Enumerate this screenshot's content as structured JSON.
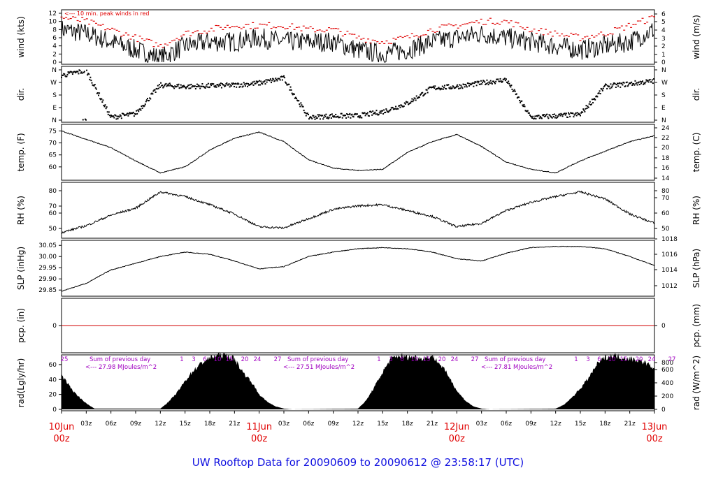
{
  "footer": "UW Rooftop Data for 20090609  to  20090612 @ 23:58:17  (UTC)",
  "colors": {
    "frame": "#000000",
    "peak": "#e00000",
    "day_label": "#e00000",
    "rad_note": "#a000c0",
    "footer": "#1010e0",
    "pcp_line": "#d00000"
  },
  "x_axis": {
    "hour_labels": [
      "03z",
      "06z",
      "09z",
      "12z",
      "15z",
      "18z",
      "21z"
    ],
    "day_labels": [
      {
        "date": "10Jun",
        "time": "00z"
      },
      {
        "date": "11Jun",
        "time": "00z"
      },
      {
        "date": "12Jun",
        "time": "00z"
      },
      {
        "date": "13Jun",
        "time": "00z"
      }
    ]
  },
  "chart_data": [
    {
      "type": "line",
      "key": "wind",
      "ylabel_left": "wind (kts)",
      "ylabel_right": "wind (m/s)",
      "left_ticks": [
        "0",
        "2",
        "4",
        "6",
        "8",
        "10",
        "12"
      ],
      "ylim": [
        0,
        12
      ],
      "right_ticks": [
        "0",
        "1",
        "2",
        "3",
        "4",
        "5",
        "6"
      ],
      "annotation": "<--- 10 min. peak winds in red",
      "x_hours": [
        0,
        3,
        6,
        9,
        12,
        15,
        18,
        21,
        24,
        27,
        30,
        33,
        36,
        39,
        42,
        45,
        48,
        51,
        54,
        57,
        60,
        63,
        66,
        69,
        72
      ],
      "series": [
        {
          "role": "speed",
          "values": [
            8,
            7,
            5,
            3,
            1,
            4,
            5,
            5,
            6,
            5,
            5,
            5,
            3,
            2,
            3,
            5,
            6,
            7,
            6,
            5,
            4,
            3,
            4,
            5,
            8
          ]
        },
        {
          "role": "peak",
          "values": [
            11,
            10,
            8,
            6,
            4,
            7,
            8,
            9,
            9,
            9,
            8,
            8,
            6,
            5,
            6,
            8,
            9,
            10,
            10,
            8,
            7,
            6,
            7,
            9,
            11
          ]
        }
      ]
    },
    {
      "type": "scatter",
      "key": "dir",
      "ylabel_left": "dir.",
      "ylabel_right": "dir.",
      "left_ticks": [
        "N",
        "E",
        "S",
        "W",
        "N"
      ],
      "right_ticks": [
        "N",
        "E",
        "S",
        "W",
        "N"
      ],
      "ylim": [
        0,
        360
      ],
      "x_hours": [
        0,
        3,
        6,
        9,
        12,
        15,
        18,
        21,
        24,
        27,
        30,
        33,
        36,
        39,
        42,
        45,
        48,
        51,
        54,
        57,
        60,
        63,
        66,
        69,
        72
      ],
      "values": [
        320,
        355,
        20,
        45,
        250,
        240,
        245,
        250,
        265,
        300,
        20,
        30,
        30,
        60,
        120,
        230,
        240,
        265,
        290,
        20,
        30,
        40,
        240,
        260,
        280
      ]
    },
    {
      "type": "line",
      "key": "temp",
      "ylabel_left": "temp. (F)",
      "ylabel_right": "temp. (C)",
      "left_ticks": [
        "60",
        "65",
        "70",
        "75"
      ],
      "ylim": [
        55.3,
        76.0
      ],
      "right_ticks": [
        "14",
        "16",
        "18",
        "20",
        "22",
        "24"
      ],
      "x_hours": [
        0,
        3,
        6,
        9,
        12,
        15,
        18,
        21,
        24,
        27,
        30,
        33,
        36,
        39,
        42,
        45,
        48,
        51,
        54,
        57,
        60,
        63,
        66,
        69,
        72
      ],
      "values": [
        75,
        71.5,
        68,
        62.5,
        57.5,
        60,
        67,
        72,
        74.5,
        70.5,
        63,
        59.5,
        58.5,
        59,
        66,
        70.5,
        73.5,
        68.5,
        62,
        59,
        57.5,
        62.5,
        66.5,
        70.5,
        73
      ]
    },
    {
      "type": "line",
      "key": "rh",
      "ylabel_left": "RH (%)",
      "ylabel_right": "RH (%)",
      "left_ticks": [
        "50",
        "60",
        "70",
        "80"
      ],
      "ylim": [
        44,
        86
      ],
      "right_ticks": [
        "50",
        "60",
        "70",
        "80"
      ],
      "x_hours": [
        0,
        3,
        6,
        9,
        12,
        15,
        18,
        21,
        24,
        27,
        30,
        33,
        36,
        39,
        42,
        45,
        48,
        51,
        54,
        57,
        60,
        63,
        66,
        69,
        72
      ],
      "values": [
        47,
        53,
        62,
        68,
        82,
        78,
        71,
        63,
        52,
        51,
        59,
        67,
        70,
        71,
        66,
        61,
        52,
        55,
        66,
        73,
        78,
        82,
        76,
        63,
        55
      ]
    },
    {
      "type": "line",
      "key": "slp",
      "ylabel_left": "SLP (inHg)",
      "ylabel_right": "SLP (hPa)",
      "left_ticks": [
        "29.85",
        "29.90",
        "29.95",
        "30.00",
        "30.05"
      ],
      "ylim": [
        29.835,
        30.057
      ],
      "right_ticks": [
        "1012",
        "1014",
        "1016",
        "1018"
      ],
      "x_hours": [
        0,
        3,
        6,
        9,
        12,
        15,
        18,
        21,
        24,
        27,
        30,
        33,
        36,
        39,
        42,
        45,
        48,
        51,
        54,
        57,
        60,
        63,
        66,
        69,
        72
      ],
      "values": [
        29.845,
        29.88,
        29.94,
        29.97,
        30.0,
        30.02,
        30.01,
        29.98,
        29.945,
        29.955,
        30.0,
        30.02,
        30.035,
        30.04,
        30.035,
        30.02,
        29.99,
        29.98,
        30.015,
        30.04,
        30.045,
        30.045,
        30.035,
        30.0,
        29.96
      ]
    },
    {
      "type": "line",
      "key": "pcp",
      "ylabel_left": "pcp. (in)",
      "ylabel_right": "pcp. (mm)",
      "left_ticks": [
        "0"
      ],
      "right_ticks": [
        "0"
      ],
      "ylim": [
        -1,
        1
      ],
      "x_hours": [
        0,
        72
      ],
      "values": [
        0,
        0
      ]
    },
    {
      "type": "area",
      "key": "rad",
      "ylabel_left": "rad(Lgly/hr)",
      "ylabel_right": "rad (W/m^2)",
      "left_ticks": [
        "0",
        "20",
        "40",
        "60"
      ],
      "ylim": [
        0,
        73
      ],
      "right_ticks": [
        "0",
        "200",
        "400",
        "600",
        "800"
      ],
      "sum_label": "Sum of previous day",
      "daily_sums": [
        "<--- 27.98 MJoules/m^2",
        "<--- 27.51 MJoules/m^2",
        "<--- 27.81 MJoules/m^2"
      ],
      "scale_labels": [
        "25",
        "1",
        "3",
        "6",
        "10",
        "15",
        "20",
        "24",
        "27"
      ],
      "x_hours": [
        0,
        1,
        2,
        3,
        4,
        12,
        13,
        14,
        15,
        16,
        17,
        18,
        19,
        20,
        21,
        22,
        23,
        24,
        25,
        26,
        27,
        28,
        36,
        37,
        38,
        39,
        40,
        41,
        42,
        43,
        44,
        45,
        46,
        47,
        48,
        49,
        50,
        51,
        52,
        60,
        61,
        62,
        63,
        64,
        65,
        66,
        67,
        68,
        69,
        70,
        71,
        72
      ],
      "values": [
        47,
        30,
        18,
        8,
        1,
        1,
        10,
        22,
        38,
        52,
        62,
        69,
        73,
        72,
        68,
        50,
        38,
        20,
        10,
        4,
        1,
        0,
        1,
        12,
        30,
        50,
        68,
        72,
        70,
        70,
        68,
        72,
        60,
        45,
        25,
        12,
        4,
        1,
        0,
        1,
        6,
        16,
        28,
        42,
        60,
        70,
        72,
        70,
        68,
        66,
        62,
        55
      ]
    }
  ]
}
